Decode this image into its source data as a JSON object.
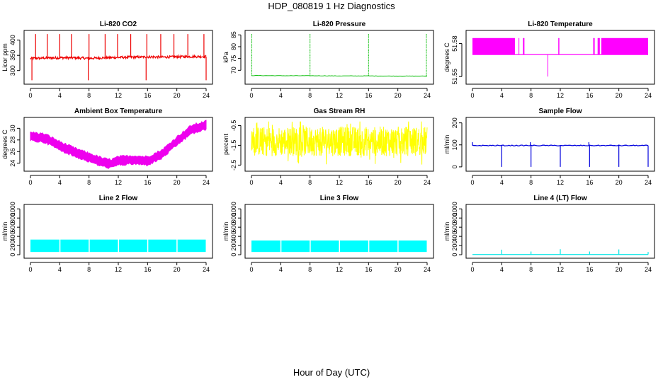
{
  "page": {
    "title": "HDP_080819  1 Hz Diagnostics",
    "xlabel": "Hour of Day (UTC)"
  },
  "chart_data": [
    {
      "type": "line",
      "title": "Li-820 CO2",
      "ylabel": "Licor ppm",
      "color": "#ee0000",
      "xlim": [
        0,
        24
      ],
      "ylim": [
        262,
        425
      ],
      "xticks": [
        "0",
        "4",
        "8",
        "12",
        "16",
        "20",
        "24"
      ],
      "yticks": [
        300,
        350,
        400
      ],
      "x": [
        0,
        2,
        4,
        6,
        8,
        10,
        12,
        14,
        16,
        18,
        20,
        22,
        24
      ],
      "y": [
        340,
        341,
        342,
        342,
        340,
        342,
        343,
        344,
        345,
        344,
        345,
        346,
        346
      ],
      "spikes_up_x": [
        0.7,
        2.3,
        4.0,
        5.6,
        8.0,
        10.2,
        11.9,
        13.7,
        15.9,
        17.8,
        19.6,
        21.5,
        23.7
      ],
      "spikes_up_y": 420,
      "spikes_down_x": [
        0.2,
        7.9,
        15.8,
        24.0
      ],
      "spikes_down_y": 268
    },
    {
      "type": "line",
      "title": "Li-820 Pressure",
      "ylabel": "kPa",
      "color": "#00bb00",
      "xlim": [
        0,
        24
      ],
      "ylim": [
        65,
        86
      ],
      "xticks": [
        "0",
        "4",
        "8",
        "12",
        "16",
        "20",
        "24"
      ],
      "yticks": [
        70,
        75,
        80,
        85
      ],
      "x": [
        0,
        4,
        8,
        12,
        16,
        20,
        24
      ],
      "y": [
        67.8,
        67.7,
        67.7,
        67.6,
        67.6,
        67.5,
        67.5
      ],
      "spikes_up_x": [
        0.05,
        8.0,
        16.0,
        23.9
      ],
      "spikes_up_y": 85.5
    },
    {
      "type": "line",
      "title": "Li-820 Temperature",
      "ylabel": "degrees C",
      "color": "#ff00ff",
      "xlim": [
        0,
        24
      ],
      "ylim": [
        51.545,
        51.59
      ],
      "xticks": [
        "0",
        "4",
        "8",
        "12",
        "16",
        "20",
        "24"
      ],
      "yticks": [
        51.55,
        51.58
      ],
      "base": 51.57,
      "high": 51.585,
      "dense_intervals": [
        [
          0,
          5.8
        ],
        [
          6.3,
          6.4
        ],
        [
          6.9,
          7.1
        ],
        [
          16.5,
          16.7
        ],
        [
          17.1,
          17.4
        ],
        [
          17.6,
          24
        ]
      ],
      "dip": {
        "x": 10.3,
        "y": 51.55
      },
      "pulse": {
        "x": 11.8
      }
    },
    {
      "type": "line",
      "title": "Ambient Box Temperature",
      "ylabel": "degrees C",
      "color": "#ee00ee",
      "xlim": [
        0,
        24
      ],
      "ylim": [
        23,
        31.5
      ],
      "xticks": [
        "0",
        "4",
        "8",
        "12",
        "16",
        "20",
        "24"
      ],
      "yticks": [
        24,
        26,
        28,
        30
      ],
      "x": [
        0,
        2,
        4,
        6,
        8,
        10,
        11,
        12,
        14,
        16,
        18,
        20,
        22,
        24
      ],
      "y": [
        28.6,
        28.3,
        27.0,
        25.9,
        25.0,
        24.1,
        23.9,
        24.4,
        24.6,
        24.4,
        25.6,
        27.8,
        29.8,
        30.5
      ]
    },
    {
      "type": "line",
      "title": "Gas Stream RH",
      "ylabel": "percent",
      "color": "#ffff00",
      "xlim": [
        0,
        24
      ],
      "ylim": [
        -2.7,
        -0.2
      ],
      "xticks": [
        "0",
        "4",
        "8",
        "12",
        "16",
        "20",
        "24"
      ],
      "yticks": [
        -2.5,
        -1.5,
        -0.5
      ],
      "center": -1.3
    },
    {
      "type": "line",
      "title": "Sample Flow",
      "ylabel": "ml/min",
      "color": "#0000dd",
      "xlim": [
        0,
        24
      ],
      "ylim": [
        -10,
        215
      ],
      "xticks": [
        "0",
        "4",
        "8",
        "12",
        "16",
        "20",
        "24"
      ],
      "yticks": [
        0,
        100,
        200
      ],
      "base": 97,
      "drops_x": [
        4.0,
        8.0,
        12.0,
        16.0,
        20.0,
        24.0
      ],
      "drop_y": 0,
      "bumps_x": [
        7.9,
        15.9
      ],
      "bump_y": 112
    },
    {
      "type": "area",
      "title": "Line 2 Flow",
      "ylabel": "ml/min",
      "color": "#00ffff",
      "xlim": [
        0,
        24
      ],
      "ylim": [
        -30,
        1050
      ],
      "xticks": [
        "0",
        "4",
        "8",
        "12",
        "16",
        "20",
        "24"
      ],
      "yticks": [
        0,
        200,
        400,
        600,
        800,
        1000
      ],
      "band": [
        60,
        330
      ],
      "gaps_x": [
        4.0,
        8.0,
        12.0,
        16.0,
        20.0
      ]
    },
    {
      "type": "area",
      "title": "Line 3 Flow",
      "ylabel": "ml/min",
      "color": "#00ffff",
      "xlim": [
        0,
        24
      ],
      "ylim": [
        -30,
        1050
      ],
      "xticks": [
        "0",
        "4",
        "8",
        "12",
        "16",
        "20",
        "24"
      ],
      "yticks": [
        0,
        200,
        400,
        600,
        800,
        1000
      ],
      "band": [
        60,
        310
      ],
      "gaps_x": [
        4.0,
        8.0,
        12.0,
        16.0,
        20.0
      ]
    },
    {
      "type": "line",
      "title": "Line 4 (LT) Flow",
      "ylabel": "ml/min",
      "color": "#00e5e5",
      "xlim": [
        0,
        24
      ],
      "ylim": [
        -30,
        1050
      ],
      "xticks": [
        "0",
        "4",
        "8",
        "12",
        "16",
        "20",
        "24"
      ],
      "yticks": [
        0,
        200,
        400,
        600,
        800,
        1000
      ],
      "base": 5,
      "spikes_x": [
        4.0,
        8.0,
        12.0,
        16.0,
        20.0,
        24.0
      ],
      "spikes_y": [
        110,
        70,
        120,
        70,
        115,
        60
      ]
    }
  ]
}
